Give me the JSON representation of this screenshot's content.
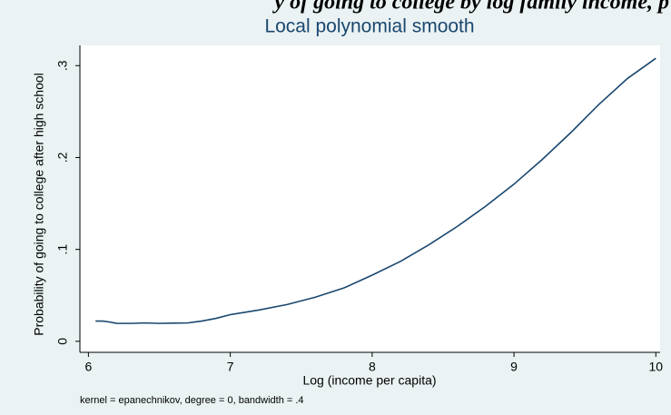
{
  "chart_data": {
    "type": "line",
    "header": "y of going to college by log family income, p",
    "title": "Local polynomial smooth",
    "x_label": "Log (income per capita)",
    "y_label": "Probability of going to college after high school",
    "note": "kernel = epanechnikov, degree = 0, bandwidth = .4",
    "x": [
      6.05,
      6.1,
      6.15,
      6.2,
      6.3,
      6.4,
      6.5,
      6.6,
      6.7,
      6.75,
      6.8,
      6.9,
      7.0,
      7.2,
      7.4,
      7.6,
      7.8,
      8.0,
      8.2,
      8.4,
      8.6,
      8.8,
      9.0,
      9.2,
      9.4,
      9.6,
      9.8,
      10.0
    ],
    "series": [
      {
        "color": "#1a476f",
        "values": [
          0.022,
          0.022,
          0.021,
          0.0195,
          0.0195,
          0.02,
          0.0195,
          0.0198,
          0.02,
          0.021,
          0.022,
          0.025,
          0.029,
          0.034,
          0.04,
          0.048,
          0.058,
          0.072,
          0.087,
          0.105,
          0.125,
          0.147,
          0.171,
          0.198,
          0.227,
          0.258,
          0.286,
          0.308
        ]
      }
    ],
    "xlim": [
      5.94,
      10.03
    ],
    "ylim": [
      -0.012,
      0.322
    ],
    "xticks": [
      6,
      7,
      8,
      9,
      10
    ],
    "yticks": [
      {
        "value": 0,
        "label": "0"
      },
      {
        "value": 0.1,
        "label": ".1"
      },
      {
        "value": 0.2,
        "label": ".2"
      },
      {
        "value": 0.3,
        "label": ".3"
      }
    ],
    "grid": false
  }
}
